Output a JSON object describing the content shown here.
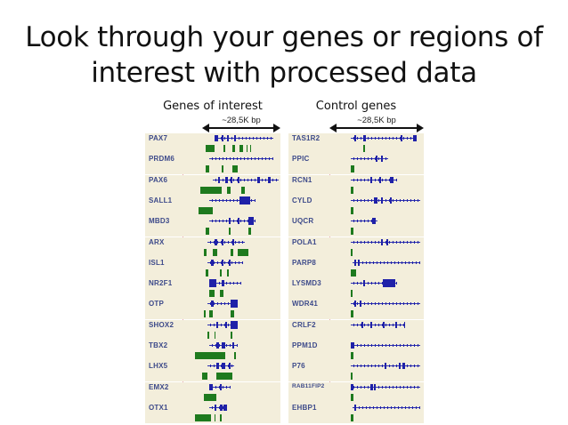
{
  "slide": {
    "title_line1": "Look through your genes or regions of",
    "title_line2": "interest with processed data"
  },
  "colors": {
    "track_background": "#f3eedb",
    "gene_model": "#1f21a8",
    "data_block": "#1e7a1e",
    "gene_label": "#3d4a8a",
    "guide_line": "#e8a9b3"
  },
  "panels": [
    {
      "heading": "Genes of interest",
      "scale_label": "~28,5K bp",
      "genes": [
        {
          "name": "PAX7",
          "line": [
            78,
            144
          ],
          "exons": [
            [
              78,
              4
            ],
            [
              86,
              2
            ],
            [
              92,
              2
            ],
            [
              100,
              2
            ]
          ],
          "blocks": [
            [
              68,
              10
            ],
            [
              88,
              2
            ],
            [
              98,
              3
            ],
            [
              106,
              4
            ],
            [
              114,
              1
            ],
            [
              118,
              1
            ]
          ]
        },
        {
          "name": "PRDM6",
          "line": [
            72,
            144
          ],
          "exons": [],
          "blocks": [
            [
              68,
              4
            ],
            [
              86,
              2
            ],
            [
              98,
              6
            ]
          ]
        },
        {
          "name": "PAX6",
          "line": [
            76,
            150
          ],
          "exons": [
            [
              82,
              2
            ],
            [
              90,
              3
            ],
            [
              96,
              2
            ],
            [
              104,
              2
            ],
            [
              126,
              3
            ],
            [
              138,
              3
            ]
          ],
          "blocks": [
            [
              62,
              24
            ],
            [
              92,
              4
            ],
            [
              108,
              4
            ]
          ]
        },
        {
          "name": "SALL1",
          "line": [
            72,
            124
          ],
          "exons": [
            [
              106,
              12
            ]
          ],
          "blocks": [
            [
              60,
              16
            ]
          ]
        },
        {
          "name": "MBD3",
          "line": [
            72,
            124
          ],
          "exons": [
            [
              94,
              2
            ],
            [
              104,
              2
            ],
            [
              116,
              6
            ]
          ],
          "blocks": [
            [
              68,
              4
            ],
            [
              94,
              2
            ],
            [
              116,
              3
            ]
          ]
        },
        {
          "name": "ARX",
          "line": [
            70,
            112
          ],
          "exons": [
            [
              78,
              3
            ],
            [
              86,
              2
            ],
            [
              98,
              2
            ]
          ],
          "blocks": [
            [
              66,
              3
            ],
            [
              76,
              5
            ],
            [
              96,
              3
            ],
            [
              104,
              12
            ]
          ]
        },
        {
          "name": "ISL1",
          "line": [
            70,
            110
          ],
          "exons": [
            [
              74,
              3
            ],
            [
              86,
              2
            ],
            [
              94,
              2
            ]
          ],
          "blocks": [
            [
              68,
              3
            ],
            [
              84,
              2
            ],
            [
              92,
              2
            ]
          ]
        },
        {
          "name": "NR2F1",
          "line": [
            72,
            108
          ],
          "exons": [
            [
              72,
              8
            ],
            [
              86,
              3
            ]
          ],
          "blocks": [
            [
              72,
              6
            ],
            [
              84,
              4
            ]
          ]
        },
        {
          "name": "OTP",
          "line": [
            70,
            104
          ],
          "exons": [
            [
              74,
              3
            ],
            [
              96,
              8
            ]
          ],
          "blocks": [
            [
              66,
              2
            ],
            [
              72,
              4
            ],
            [
              96,
              4
            ]
          ]
        },
        {
          "name": "SHOX2",
          "line": [
            70,
            104
          ],
          "exons": [
            [
              80,
              2
            ],
            [
              90,
              2
            ],
            [
              96,
              8
            ]
          ],
          "blocks": [
            [
              70,
              2
            ],
            [
              78,
              1
            ],
            [
              96,
              2
            ]
          ]
        },
        {
          "name": "TBX2",
          "line": [
            72,
            104
          ],
          "exons": [
            [
              80,
              3
            ],
            [
              86,
              4
            ],
            [
              98,
              2
            ]
          ],
          "blocks": [
            [
              56,
              34
            ],
            [
              100,
              2
            ]
          ]
        },
        {
          "name": "LHX5",
          "line": [
            70,
            100
          ],
          "exons": [
            [
              80,
              3
            ],
            [
              86,
              4
            ],
            [
              94,
              2
            ]
          ],
          "blocks": [
            [
              64,
              6
            ],
            [
              80,
              18
            ]
          ]
        },
        {
          "name": "EMX2",
          "line": [
            72,
            96
          ],
          "exons": [
            [
              72,
              4
            ],
            [
              84,
              2
            ]
          ],
          "blocks": [
            [
              66,
              14
            ]
          ]
        },
        {
          "name": "OTX1",
          "line": [
            72,
            92
          ],
          "exons": [
            [
              78,
              2
            ],
            [
              84,
              3
            ],
            [
              88,
              4
            ]
          ],
          "blocks": [
            [
              56,
              18
            ],
            [
              78,
              1
            ],
            [
              84,
              2
            ]
          ]
        }
      ]
    },
    {
      "heading": "Control genes",
      "scale_label": "~28,5K bp",
      "genes": [
        {
          "name": "TAS1R2",
          "line": [
            70,
            144
          ],
          "exons": [
            [
              74,
              2
            ],
            [
              84,
              3
            ],
            [
              126,
              2
            ],
            [
              140,
              4
            ]
          ],
          "blocks": [
            [
              84,
              2
            ]
          ]
        },
        {
          "name": "PPIC",
          "line": [
            70,
            112
          ],
          "exons": [
            [
              98,
              2
            ],
            [
              104,
              2
            ]
          ],
          "blocks": [
            [
              70,
              4
            ]
          ]
        },
        {
          "name": "RCN1",
          "line": [
            70,
            122
          ],
          "exons": [
            [
              92,
              2
            ],
            [
              102,
              2
            ],
            [
              114,
              4
            ]
          ],
          "blocks": [
            [
              70,
              3
            ]
          ]
        },
        {
          "name": "CYLD",
          "line": [
            70,
            148
          ],
          "exons": [
            [
              96,
              4
            ],
            [
              104,
              2
            ],
            [
              114,
              2
            ]
          ],
          "blocks": [
            [
              70,
              3
            ]
          ]
        },
        {
          "name": "UQCR",
          "line": [
            70,
            100
          ],
          "exons": [
            [
              94,
              4
            ]
          ],
          "blocks": [
            [
              70,
              3
            ]
          ]
        },
        {
          "name": "POLA1",
          "line": [
            70,
            148
          ],
          "exons": [
            [
              104,
              2
            ],
            [
              110,
              2
            ]
          ],
          "blocks": [
            [
              70,
              2
            ]
          ]
        },
        {
          "name": "PARP8",
          "line": [
            72,
            148
          ],
          "exons": [
            [
              74,
              2
            ],
            [
              78,
              2
            ]
          ],
          "blocks": [
            [
              70,
              6
            ]
          ]
        },
        {
          "name": "LYSMD3",
          "line": [
            70,
            122
          ],
          "exons": [
            [
              84,
              2
            ],
            [
              106,
              14
            ]
          ],
          "blocks": [
            [
              70,
              2
            ]
          ]
        },
        {
          "name": "WDR41",
          "line": [
            70,
            148
          ],
          "exons": [
            [
              74,
              2
            ],
            [
              80,
              2
            ]
          ],
          "blocks": [
            [
              70,
              3
            ]
          ]
        },
        {
          "name": "CRLF2",
          "line": [
            70,
            130
          ],
          "exons": [
            [
              82,
              2
            ],
            [
              92,
              2
            ],
            [
              106,
              2
            ],
            [
              120,
              2
            ],
            [
              130,
              1
            ]
          ],
          "blocks": []
        },
        {
          "name": "PPM1D",
          "line": [
            70,
            148
          ],
          "exons": [
            [
              70,
              4
            ]
          ],
          "blocks": [
            [
              70,
              3
            ]
          ]
        },
        {
          "name": "P76",
          "line": [
            70,
            148
          ],
          "exons": [
            [
              108,
              2
            ],
            [
              124,
              2
            ],
            [
              128,
              3
            ]
          ],
          "blocks": [
            [
              70,
              2
            ]
          ]
        },
        {
          "name": "RAB11FIP2",
          "line": [
            70,
            148
          ],
          "exons": [
            [
              70,
              3
            ],
            [
              92,
              3
            ],
            [
              96,
              2
            ]
          ],
          "blocks": [
            [
              70,
              3
            ]
          ]
        },
        {
          "name": "EHBP1",
          "line": [
            72,
            148
          ],
          "exons": [
            [
              74,
              2
            ]
          ],
          "blocks": [
            [
              70,
              3
            ]
          ]
        }
      ]
    }
  ]
}
